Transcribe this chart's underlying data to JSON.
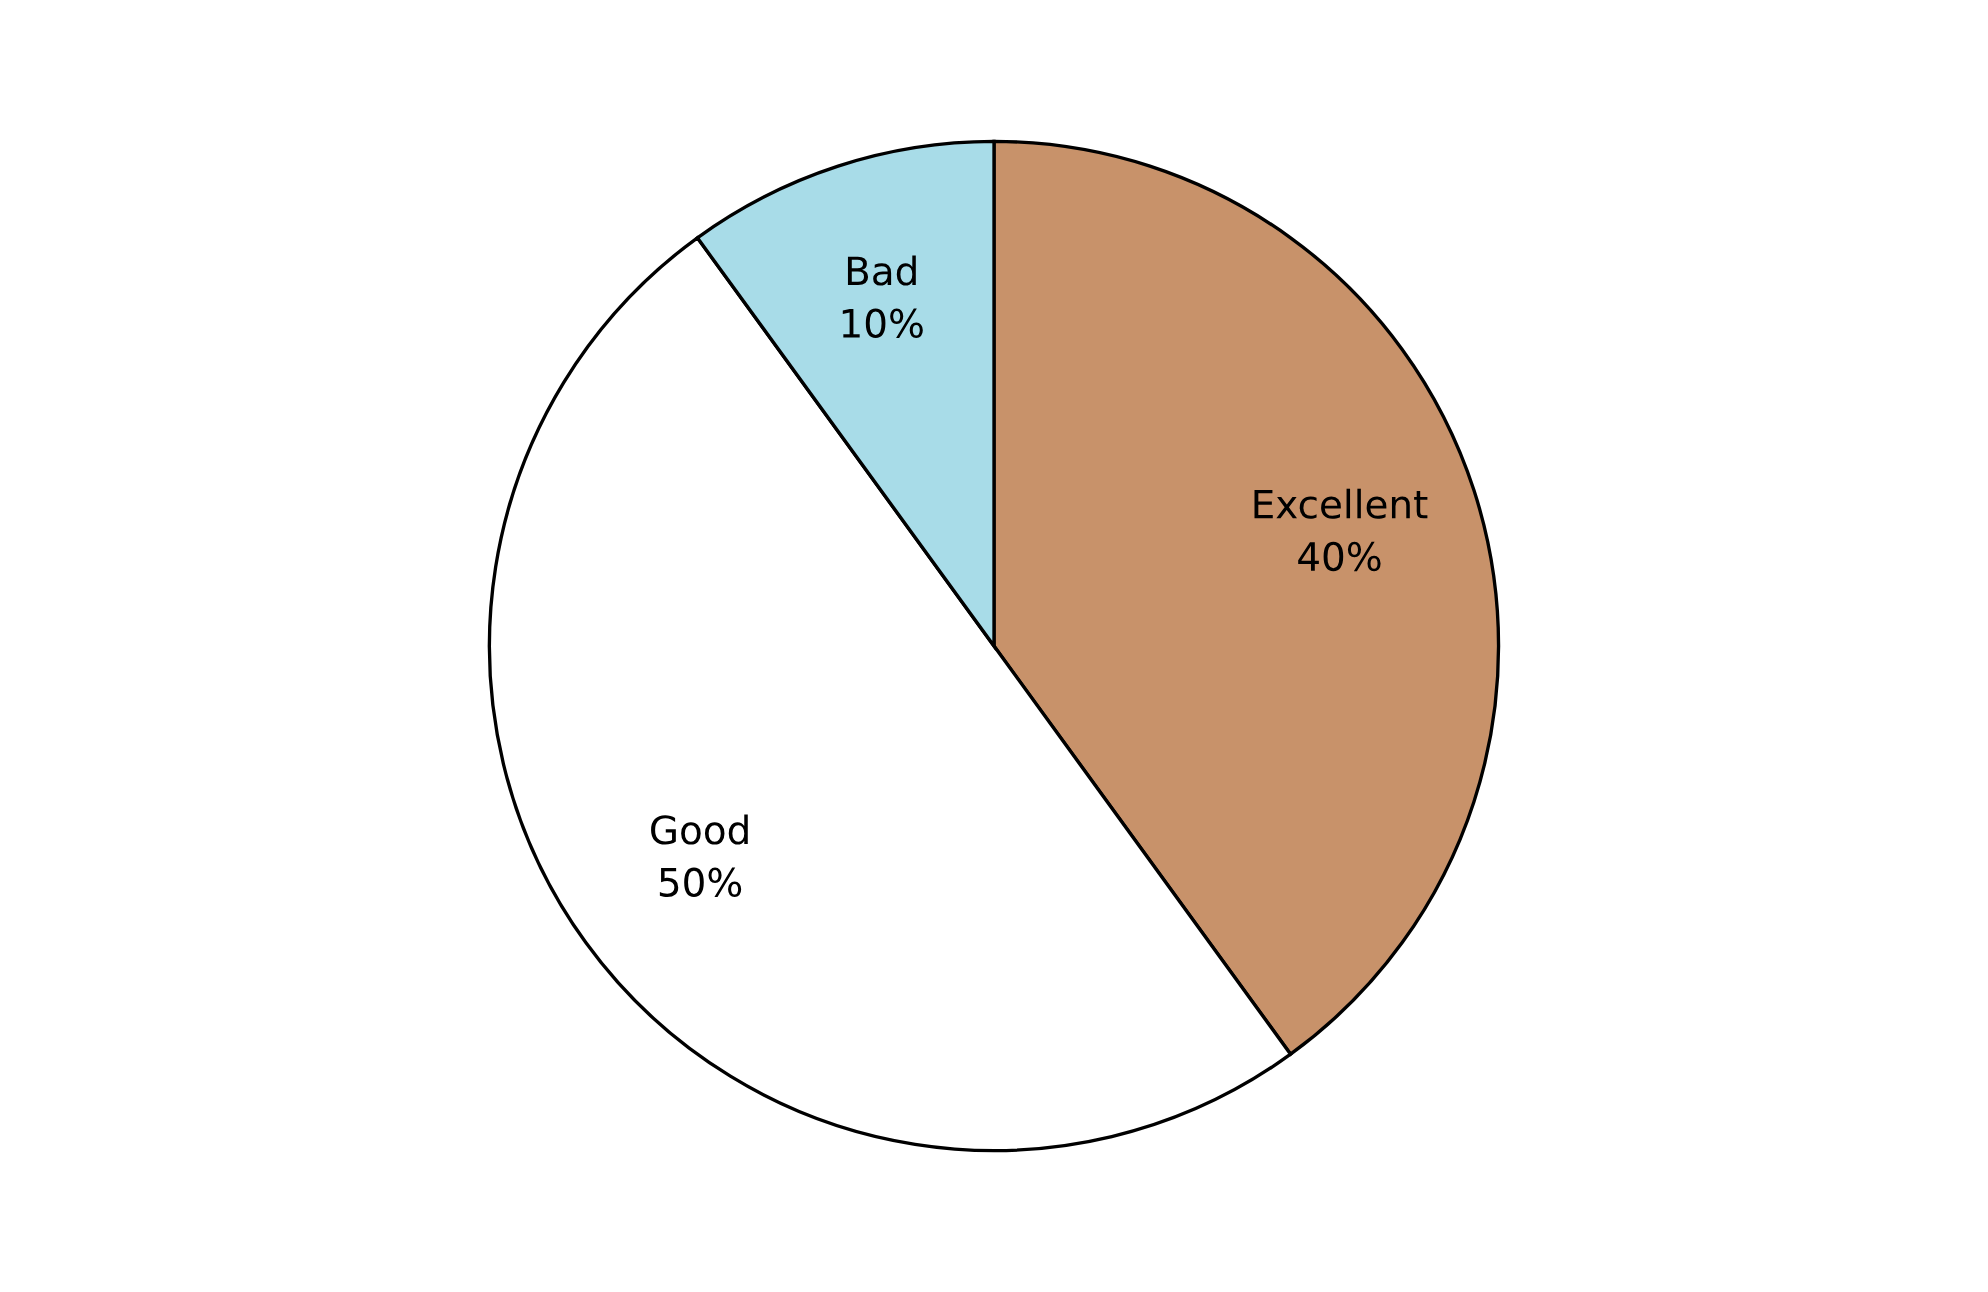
{
  "chart_data": {
    "type": "pie",
    "categories": [
      "Excellent",
      "Good",
      "Bad"
    ],
    "values": [
      40,
      50,
      10
    ],
    "colors": [
      "#c8926a",
      "#ffffff",
      "#a8dce8"
    ],
    "value_labels": [
      "40%",
      "50%",
      "10%"
    ]
  }
}
